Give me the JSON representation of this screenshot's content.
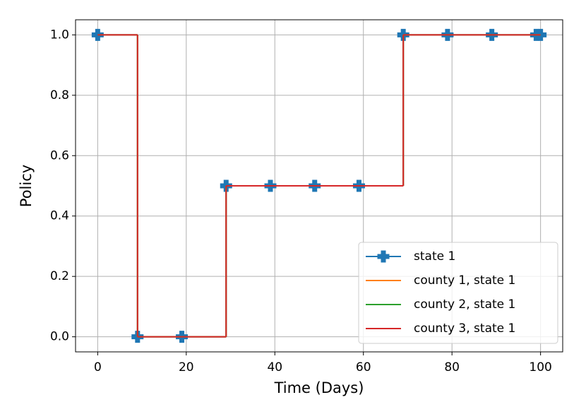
{
  "chart_data": {
    "type": "line",
    "step": "post",
    "grid": true,
    "legend": "lower right",
    "xlabel": "Time (Days)",
    "ylabel": "Policy",
    "xlim": [
      -5,
      105
    ],
    "ylim": [
      -0.05,
      1.05
    ],
    "xticks": [
      0,
      20,
      40,
      60,
      80,
      100
    ],
    "yticks": [
      {
        "value": 0,
        "label": "0.0"
      },
      {
        "value": 0.2,
        "label": "0.2"
      },
      {
        "value": 0.4,
        "label": "0.4"
      },
      {
        "value": 0.6,
        "label": "0.6"
      },
      {
        "value": 0.8,
        "label": "0.8"
      },
      {
        "value": 1,
        "label": "1.0"
      }
    ],
    "x": [
      0,
      9,
      19,
      29,
      39,
      49,
      59,
      69,
      79,
      89,
      99,
      100
    ],
    "series": [
      {
        "name": "state 1",
        "color": "#1f77b4",
        "marker": "plus",
        "values": [
          1,
          0,
          0,
          0.5,
          0.5,
          0.5,
          0.5,
          1,
          1,
          1,
          1,
          1
        ]
      },
      {
        "name": "county 1, state 1",
        "color": "#ff7f0e",
        "values": [
          1,
          0,
          0,
          0.5,
          0.5,
          0.5,
          0.5,
          1,
          1,
          1,
          1,
          1
        ]
      },
      {
        "name": "county 2, state 1",
        "color": "#2ca02c",
        "values": [
          1,
          0,
          0,
          0.5,
          0.5,
          0.5,
          0.5,
          1,
          1,
          1,
          1,
          1
        ]
      },
      {
        "name": "county 3, state 1",
        "color": "#d62728",
        "values": [
          1,
          0,
          0,
          0.5,
          0.5,
          0.5,
          0.5,
          1,
          1,
          1,
          1,
          1
        ]
      }
    ]
  }
}
